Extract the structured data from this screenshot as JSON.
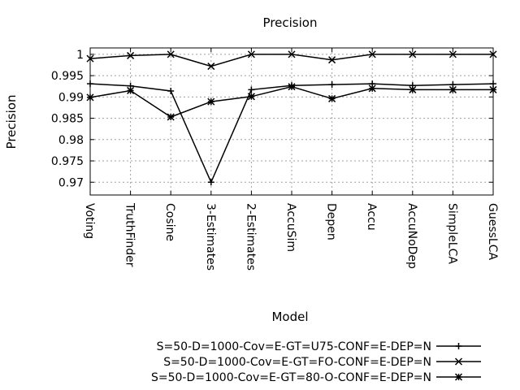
{
  "chart_data": {
    "type": "line",
    "title": "Precision",
    "xlabel": "Model",
    "ylabel": "Precision",
    "categories": [
      "Voting",
      "TruthFinder",
      "Cosine",
      "3-Estimates",
      "2-Estimates",
      "AccuSim",
      "Depen",
      "Accu",
      "AccuNoDep",
      "SimpleLCA",
      "GuessLCA"
    ],
    "ylim": [
      0.967,
      1.0015
    ],
    "yticks": [
      "0.97",
      "0.975",
      "0.98",
      "0.985",
      "0.99",
      "0.995",
      "1"
    ],
    "grid": true,
    "legend_position": "bottom-right",
    "series": [
      {
        "name": "S=50-D=1000-Cov=E-GT=U75-CONF=E-DEP=N",
        "marker": "plus",
        "values": [
          0.9931,
          0.9926,
          0.9914,
          0.97,
          0.9917,
          0.9927,
          0.9929,
          0.9931,
          0.9927,
          0.9929,
          0.9931
        ]
      },
      {
        "name": "S=50-D=1000-Cov=E-GT=FO-CONF=E-DEP=N",
        "marker": "cross",
        "values": [
          0.999,
          0.9997,
          1.0,
          0.9972,
          1.0,
          1.0,
          0.9987,
          1.0,
          1.0,
          1.0,
          1.0
        ]
      },
      {
        "name": "S=50-D=1000-Cov=E-GT=80-O-CONF=E-DEP=N",
        "marker": "star",
        "values": [
          0.9899,
          0.9915,
          0.9853,
          0.9889,
          0.9901,
          0.9924,
          0.9896,
          0.992,
          0.9917,
          0.9917,
          0.9917
        ]
      }
    ]
  }
}
